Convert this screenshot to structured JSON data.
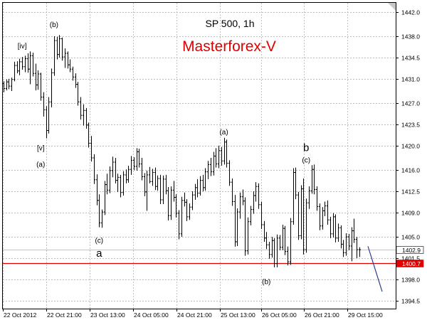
{
  "chart_data": {
    "type": "ohlc",
    "title": "SP 500, 1h",
    "brand": "Masterforex-V",
    "ylim": [
      1393.2,
      1443.5
    ],
    "y_ticks": [
      "1442.0",
      "1438.0",
      "1434.5",
      "1431.0",
      "1427.0",
      "1423.5",
      "1420.0",
      "1416.0",
      "1412.5",
      "1409.0",
      "1405.0",
      "1401.5",
      "1398.0",
      "1394.5"
    ],
    "x_ticks": [
      "22 Oct 2012",
      "22 Oct 21:00",
      "23 Oct 13:00",
      "24 Oct 05:00",
      "24 Oct 21:00",
      "25 Oct 13:00",
      "26 Oct 05:00",
      "26 Oct 21:00",
      "29 Oct 15:00"
    ],
    "price_tags": [
      {
        "label": "1402.9",
        "value": 1402.9,
        "color": "#000000",
        "bg": "#ffffff",
        "line": "#b0b0b0"
      },
      {
        "label": "1400.7",
        "value": 1400.7,
        "color": "#ffffff",
        "bg": "#e00000",
        "line": "#e00000"
      }
    ],
    "bars": [
      [
        1430.2,
        1430.6,
        1428.8,
        1429.4
      ],
      [
        1429.4,
        1430.9,
        1429.1,
        1430.5
      ],
      [
        1430.5,
        1431.0,
        1429.3,
        1429.8
      ],
      [
        1429.8,
        1431.2,
        1429.0,
        1430.9
      ],
      [
        1430.9,
        1433.8,
        1430.6,
        1433.2
      ],
      [
        1433.2,
        1433.9,
        1431.9,
        1432.3
      ],
      [
        1432.3,
        1434.3,
        1431.6,
        1433.8
      ],
      [
        1433.8,
        1434.6,
        1432.5,
        1433.0
      ],
      [
        1433.0,
        1434.8,
        1432.1,
        1434.3
      ],
      [
        1434.3,
        1435.2,
        1432.0,
        1432.6
      ],
      [
        1432.6,
        1435.5,
        1430.1,
        1434.8
      ],
      [
        1434.8,
        1435.3,
        1431.4,
        1431.9
      ],
      [
        1431.9,
        1433.5,
        1429.1,
        1430.0
      ],
      [
        1430.0,
        1432.4,
        1429.2,
        1431.8
      ],
      [
        1431.8,
        1432.0,
        1427.4,
        1428.0
      ],
      [
        1428.0,
        1428.8,
        1424.8,
        1425.9
      ],
      [
        1425.9,
        1426.5,
        1421.2,
        1422.5
      ],
      [
        1422.5,
        1428.0,
        1422.0,
        1427.2
      ],
      [
        1427.2,
        1432.7,
        1426.3,
        1432.0
      ],
      [
        1432.0,
        1438.0,
        1431.5,
        1437.3
      ],
      [
        1437.3,
        1437.9,
        1434.2,
        1435.0
      ],
      [
        1435.0,
        1438.2,
        1434.5,
        1437.6
      ],
      [
        1437.6,
        1437.8,
        1434.0,
        1434.6
      ],
      [
        1434.6,
        1436.0,
        1432.8,
        1435.2
      ],
      [
        1435.2,
        1435.5,
        1432.7,
        1433.3
      ],
      [
        1433.3,
        1434.2,
        1432.1,
        1432.6
      ],
      [
        1432.6,
        1433.0,
        1430.7,
        1431.3
      ],
      [
        1431.3,
        1431.9,
        1429.5,
        1430.1
      ],
      [
        1430.1,
        1430.5,
        1426.6,
        1427.2
      ],
      [
        1427.2,
        1428.0,
        1424.3,
        1425.0
      ],
      [
        1425.0,
        1426.8,
        1423.3,
        1425.8
      ],
      [
        1425.8,
        1426.2,
        1422.8,
        1423.4
      ],
      [
        1423.4,
        1423.8,
        1419.7,
        1420.4
      ],
      [
        1420.4,
        1421.6,
        1417.4,
        1418.0
      ],
      [
        1418.0,
        1418.6,
        1413.7,
        1414.4
      ],
      [
        1414.4,
        1415.3,
        1410.2,
        1411.0
      ],
      [
        1411.0,
        1412.0,
        1406.6,
        1407.3
      ],
      [
        1407.3,
        1409.5,
        1406.5,
        1409.1
      ],
      [
        1409.1,
        1414.2,
        1408.6,
        1413.6
      ],
      [
        1413.6,
        1415.4,
        1412.0,
        1412.7
      ],
      [
        1412.7,
        1416.6,
        1412.2,
        1415.9
      ],
      [
        1415.9,
        1418.2,
        1414.8,
        1417.3
      ],
      [
        1417.3,
        1418.0,
        1413.8,
        1414.3
      ],
      [
        1414.3,
        1415.4,
        1412.4,
        1414.8
      ],
      [
        1414.8,
        1415.2,
        1411.5,
        1412.3
      ],
      [
        1412.3,
        1415.8,
        1411.8,
        1415.2
      ],
      [
        1415.2,
        1416.1,
        1413.8,
        1414.4
      ],
      [
        1414.4,
        1416.7,
        1413.9,
        1416.1
      ],
      [
        1416.1,
        1418.3,
        1415.2,
        1417.6
      ],
      [
        1417.6,
        1418.1,
        1416.0,
        1416.6
      ],
      [
        1416.6,
        1419.6,
        1415.9,
        1419.0
      ],
      [
        1419.0,
        1419.5,
        1416.4,
        1417.0
      ],
      [
        1417.0,
        1418.0,
        1414.3,
        1414.9
      ],
      [
        1414.9,
        1415.5,
        1411.7,
        1412.4
      ],
      [
        1412.4,
        1415.9,
        1409.3,
        1415.2
      ],
      [
        1415.2,
        1416.5,
        1413.8,
        1414.1
      ],
      [
        1414.1,
        1416.2,
        1413.4,
        1415.6
      ],
      [
        1415.6,
        1416.4,
        1412.7,
        1413.3
      ],
      [
        1413.3,
        1415.1,
        1412.6,
        1414.6
      ],
      [
        1414.6,
        1415.2,
        1410.4,
        1411.1
      ],
      [
        1411.1,
        1415.1,
        1410.4,
        1414.5
      ],
      [
        1414.5,
        1415.2,
        1412.0,
        1412.6
      ],
      [
        1412.6,
        1413.2,
        1407.7,
        1408.5
      ],
      [
        1408.5,
        1413.3,
        1407.8,
        1412.7
      ],
      [
        1412.7,
        1414.2,
        1410.8,
        1411.5
      ],
      [
        1411.5,
        1412.0,
        1408.2,
        1408.9
      ],
      [
        1408.9,
        1409.4,
        1404.6,
        1405.5
      ],
      [
        1405.5,
        1411.6,
        1405.0,
        1411.0
      ],
      [
        1411.0,
        1412.3,
        1410.0,
        1410.7
      ],
      [
        1410.7,
        1411.2,
        1407.6,
        1408.3
      ],
      [
        1408.3,
        1410.5,
        1407.8,
        1409.9
      ],
      [
        1409.9,
        1412.5,
        1409.4,
        1411.9
      ],
      [
        1411.9,
        1413.7,
        1411.1,
        1413.1
      ],
      [
        1413.1,
        1414.5,
        1411.5,
        1412.2
      ],
      [
        1412.2,
        1415.0,
        1411.8,
        1414.3
      ],
      [
        1414.3,
        1415.2,
        1412.5,
        1413.1
      ],
      [
        1413.1,
        1416.3,
        1412.6,
        1415.7
      ],
      [
        1415.7,
        1417.5,
        1414.5,
        1416.9
      ],
      [
        1416.9,
        1418.0,
        1415.0,
        1415.7
      ],
      [
        1415.7,
        1419.0,
        1415.1,
        1418.3
      ],
      [
        1418.3,
        1419.6,
        1416.4,
        1417.0
      ],
      [
        1417.0,
        1420.0,
        1416.3,
        1419.2
      ],
      [
        1419.2,
        1419.8,
        1416.7,
        1417.5
      ],
      [
        1417.5,
        1421.3,
        1416.9,
        1420.6
      ],
      [
        1420.6,
        1421.0,
        1416.4,
        1417.1
      ],
      [
        1417.1,
        1417.6,
        1413.4,
        1414.0
      ],
      [
        1414.0,
        1414.6,
        1410.1,
        1410.8
      ],
      [
        1410.8,
        1411.9,
        1403.4,
        1404.2
      ],
      [
        1404.2,
        1409.7,
        1403.5,
        1409.1
      ],
      [
        1409.1,
        1412.3,
        1408.0,
        1411.6
      ],
      [
        1411.6,
        1412.8,
        1410.2,
        1410.9
      ],
      [
        1410.9,
        1411.5,
        1401.9,
        1402.7
      ],
      [
        1402.7,
        1408.2,
        1402.1,
        1407.5
      ],
      [
        1407.5,
        1410.1,
        1406.9,
        1409.5
      ],
      [
        1409.5,
        1412.5,
        1408.8,
        1411.8
      ],
      [
        1411.8,
        1414.0,
        1410.8,
        1413.3
      ],
      [
        1413.3,
        1413.8,
        1409.6,
        1410.3
      ],
      [
        1410.3,
        1410.8,
        1406.3,
        1407.0
      ],
      [
        1407.0,
        1407.6,
        1404.2,
        1404.8
      ],
      [
        1404.8,
        1405.8,
        1403.0,
        1403.7
      ],
      [
        1403.7,
        1404.2,
        1401.4,
        1402.1
      ],
      [
        1402.1,
        1405.0,
        1401.6,
        1404.4
      ],
      [
        1404.4,
        1404.8,
        1400.0,
        1400.6
      ],
      [
        1400.6,
        1405.4,
        1400.0,
        1404.8
      ],
      [
        1404.8,
        1405.3,
        1402.8,
        1403.3
      ],
      [
        1403.3,
        1407.0,
        1402.8,
        1406.4
      ],
      [
        1406.4,
        1406.8,
        1402.0,
        1402.6
      ],
      [
        1402.6,
        1403.4,
        1400.3,
        1400.9
      ],
      [
        1400.9,
        1408.1,
        1400.4,
        1407.5
      ],
      [
        1407.5,
        1416.3,
        1407.0,
        1415.6
      ],
      [
        1415.6,
        1416.4,
        1411.2,
        1411.9
      ],
      [
        1411.9,
        1412.4,
        1404.5,
        1405.2
      ],
      [
        1405.2,
        1413.5,
        1404.6,
        1412.9
      ],
      [
        1412.9,
        1414.6,
        1402.1,
        1402.9
      ],
      [
        1402.9,
        1411.3,
        1402.4,
        1410.6
      ],
      [
        1410.6,
        1413.3,
        1409.6,
        1412.6
      ],
      [
        1412.6,
        1416.8,
        1412.1,
        1416.1
      ],
      [
        1416.1,
        1416.9,
        1412.0,
        1412.8
      ],
      [
        1412.8,
        1413.3,
        1409.3,
        1410.0
      ],
      [
        1410.0,
        1410.5,
        1406.1,
        1406.8
      ],
      [
        1406.8,
        1409.9,
        1406.2,
        1409.3
      ],
      [
        1409.3,
        1410.8,
        1408.4,
        1410.1
      ],
      [
        1410.1,
        1411.0,
        1407.0,
        1407.8
      ],
      [
        1407.8,
        1408.3,
        1404.8,
        1405.5
      ],
      [
        1405.5,
        1408.9,
        1404.9,
        1408.3
      ],
      [
        1408.3,
        1408.7,
        1404.1,
        1404.8
      ],
      [
        1404.8,
        1407.2,
        1404.2,
        1406.5
      ],
      [
        1406.5,
        1406.9,
        1403.1,
        1403.8
      ],
      [
        1403.8,
        1404.5,
        1401.7,
        1402.4
      ],
      [
        1402.4,
        1405.6,
        1401.9,
        1405.0
      ],
      [
        1405.0,
        1405.5,
        1402.8,
        1403.5
      ],
      [
        1403.5,
        1406.6,
        1401.0,
        1406.0
      ],
      [
        1406.0,
        1408.0,
        1404.0,
        1404.6
      ],
      [
        1404.6,
        1405.0,
        1401.5,
        1402.9
      ],
      [
        1402.9,
        1403.3,
        1401.7,
        1402.9
      ]
    ],
    "projection": {
      "from": 1403.1,
      "to": 1396.0
    },
    "wave_labels": [
      {
        "text": "[iv]",
        "bar": 7,
        "y": 1436.5,
        "size": "small"
      },
      {
        "text": "(b)",
        "bar": 19,
        "y": 1440.0,
        "size": "small"
      },
      {
        "text": "[v]",
        "bar": 14,
        "y": 1419.7,
        "size": "small"
      },
      {
        "text": "(a)",
        "bar": 14,
        "y": 1417.0,
        "size": "small"
      },
      {
        "text": "(c)",
        "bar": 36,
        "y": 1404.5,
        "size": "small"
      },
      {
        "text": "a",
        "bar": 36,
        "y": 1402.2,
        "size": "big"
      },
      {
        "text": "(a)",
        "bar": 83,
        "y": 1422.3,
        "size": "small"
      },
      {
        "text": "b",
        "bar": 114,
        "y": 1419.6,
        "size": "big"
      },
      {
        "text": "(c)",
        "bar": 114,
        "y": 1417.7,
        "size": "small"
      },
      {
        "text": "(b)",
        "bar": 99,
        "y": 1397.7,
        "size": "small"
      }
    ]
  }
}
